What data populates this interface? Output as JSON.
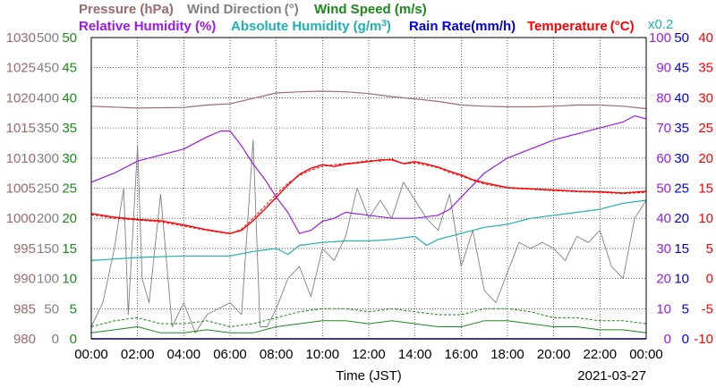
{
  "chart_data": {
    "type": "line",
    "date": "2021-03-27",
    "xlabel": "Time (JST)",
    "x_ticks": [
      "00:00",
      "02:00",
      "04:00",
      "06:00",
      "08:00",
      "10:00",
      "12:00",
      "14:00",
      "16:00",
      "18:00",
      "20:00",
      "22:00",
      "00:00"
    ],
    "x_range_hours": [
      0,
      24
    ],
    "grid": true,
    "legend": [
      {
        "key": "pressure",
        "label": "Pressure (hPa)",
        "color": "#9b6b6b"
      },
      {
        "key": "wind_direction",
        "label": "Wind Direction",
        "unit": "(°)",
        "color": "#808080"
      },
      {
        "key": "wind_speed",
        "label": "Wind Speed (m/s)",
        "color": "#1a8a1a"
      },
      {
        "key": "relative_humidity",
        "label": "Relative Humidity (%)",
        "color": "#9a1aee"
      },
      {
        "key": "absolute_humidity",
        "label": "Absolute Humidity (g/m",
        "sup": "3",
        "tail": ")",
        "color": "#20b0b0"
      },
      {
        "key": "rain_rate",
        "label": "Rain Rate(mm/h)",
        "color": "#0000e0"
      },
      {
        "key": "temperature",
        "label": "Temperature",
        "unit": "(°C)",
        "color": "#ff0000"
      }
    ],
    "abs_humidity_scale_note": "x0.2",
    "axes": {
      "pressure": {
        "min": 980,
        "max": 1030,
        "ticks": [
          "1030",
          "1025",
          "1020",
          "1015",
          "1010",
          "1005",
          "1000",
          "995",
          "990",
          "985",
          "980"
        ]
      },
      "wind_direction": {
        "min": 0,
        "max": 500,
        "ticks": [
          "500",
          "450",
          "400",
          "350",
          "300",
          "250",
          "200",
          "150",
          "100",
          "50",
          "0"
        ]
      },
      "wind_speed": {
        "min": 0,
        "max": 50,
        "ticks": [
          "50",
          "45",
          "40",
          "35",
          "30",
          "25",
          "20",
          "15",
          "10",
          "5",
          "0"
        ]
      },
      "relative_humidity": {
        "min": 0,
        "max": 100,
        "ticks": [
          "100",
          "90",
          "80",
          "70",
          "60",
          "50",
          "40",
          "30",
          "20",
          "10",
          "0"
        ]
      },
      "rain_rate": {
        "min": 0,
        "max": 50,
        "ticks": [
          "50",
          "45",
          "40",
          "35",
          "30",
          "25",
          "20",
          "15",
          "10",
          "5",
          "0"
        ]
      },
      "temperature": {
        "min": -10,
        "max": 40,
        "ticks": [
          "40",
          "35",
          "30",
          "25",
          "20",
          "15",
          "10",
          "5",
          "0",
          "-5",
          "-10"
        ]
      }
    },
    "series": [
      {
        "key": "pressure",
        "axis": "pressure",
        "x": [
          0,
          2,
          4,
          5,
          6,
          7,
          8,
          9,
          10,
          11,
          12,
          13,
          14,
          15,
          16,
          17,
          18,
          19,
          20,
          21,
          22,
          23,
          24
        ],
        "y": [
          1018.6,
          1018.3,
          1018.4,
          1018.8,
          1019.0,
          1019.9,
          1020.8,
          1021.0,
          1021.1,
          1021.0,
          1020.7,
          1020.2,
          1019.8,
          1019.4,
          1018.8,
          1018.6,
          1018.5,
          1018.5,
          1018.6,
          1018.8,
          1018.8,
          1018.6,
          1018.2
        ]
      },
      {
        "key": "wind_direction",
        "axis": "wind_direction",
        "x": [
          0,
          0.5,
          1,
          1.4,
          1.6,
          2,
          2.2,
          2.5,
          3,
          3.5,
          4,
          4.5,
          5,
          5.5,
          6,
          6.5,
          7,
          7.3,
          7.6,
          8,
          8.5,
          9,
          9.5,
          10,
          10.5,
          11,
          11.5,
          12,
          12.5,
          13,
          13.5,
          14,
          14.5,
          15,
          15.5,
          16,
          16.5,
          17,
          17.5,
          18,
          18.5,
          19,
          19.5,
          20,
          20.5,
          21,
          21.5,
          22,
          22.5,
          23,
          23.5,
          24
        ],
        "y": [
          20,
          60,
          150,
          250,
          40,
          320,
          100,
          60,
          240,
          20,
          60,
          10,
          40,
          50,
          60,
          40,
          330,
          20,
          20,
          50,
          100,
          120,
          70,
          150,
          130,
          170,
          250,
          200,
          230,
          200,
          260,
          230,
          200,
          180,
          240,
          120,
          180,
          80,
          60,
          110,
          160,
          150,
          160,
          150,
          130,
          170,
          160,
          180,
          120,
          100,
          200,
          230
        ]
      },
      {
        "key": "wind_speed",
        "axis": "wind_speed",
        "x": [
          0,
          1,
          2,
          3,
          4,
          5,
          6,
          7,
          8,
          9,
          10,
          11,
          12,
          13,
          14,
          15,
          16,
          17,
          18,
          19,
          20,
          21,
          22,
          23,
          24
        ],
        "y": [
          1,
          1.5,
          2,
          1,
          1,
          1.5,
          1,
          1,
          2,
          2.5,
          3,
          3,
          2.5,
          3,
          2.5,
          2,
          2,
          3,
          3,
          2.5,
          2,
          2,
          1.5,
          1.5,
          1
        ]
      },
      {
        "key": "wind_speed_gust",
        "axis": "wind_speed",
        "x": [
          0,
          1,
          2,
          3,
          4,
          5,
          6,
          7,
          8,
          9,
          10,
          11,
          12,
          13,
          14,
          15,
          16,
          17,
          18,
          19,
          20,
          21,
          22,
          23,
          24
        ],
        "y": [
          2,
          3,
          3.5,
          2.5,
          2.5,
          3,
          2,
          2.5,
          3.5,
          4.5,
          5,
          5,
          4.5,
          5,
          4.5,
          4,
          4,
          5,
          5,
          4.5,
          3.5,
          3.5,
          3,
          3,
          2.5
        ]
      },
      {
        "key": "relative_humidity",
        "axis": "relative_humidity",
        "x": [
          0,
          1,
          2,
          3,
          4,
          5,
          5.6,
          6,
          6.5,
          7,
          7.5,
          8,
          8.5,
          9,
          9.5,
          10,
          10.5,
          11,
          12,
          13,
          14,
          15,
          15.5,
          16,
          16.5,
          17,
          18,
          19,
          20,
          21,
          22,
          23,
          23.5,
          24
        ],
        "y": [
          52,
          55,
          59,
          61,
          63,
          67,
          69,
          69,
          64,
          58,
          53,
          47,
          42,
          35,
          36,
          39,
          40,
          42,
          41,
          40,
          40,
          41,
          43,
          47,
          51,
          55,
          60,
          63,
          66,
          68,
          70,
          72,
          74,
          73
        ]
      },
      {
        "key": "absolute_humidity",
        "axis": "relative_humidity",
        "x": [
          0,
          2,
          4,
          6,
          7,
          8,
          8.5,
          9,
          10,
          11,
          12,
          13,
          14,
          14.5,
          15,
          16,
          17,
          18,
          19,
          20,
          21,
          22,
          23,
          24
        ],
        "y": [
          26,
          27,
          27.5,
          27.5,
          29,
          30,
          28,
          31,
          32,
          32.5,
          32.5,
          33,
          34,
          31,
          33,
          35,
          37,
          38,
          40,
          41,
          42,
          43,
          45,
          46
        ]
      },
      {
        "key": "rain_rate",
        "axis": "rain_rate",
        "x": [
          0,
          24
        ],
        "y": [
          0,
          0
        ]
      },
      {
        "key": "temperature",
        "axis": "temperature",
        "x": [
          0,
          1,
          2,
          3,
          4,
          5,
          6,
          6.5,
          7,
          7.5,
          8,
          8.5,
          9,
          9.5,
          10,
          10.5,
          11,
          11.5,
          12,
          12.5,
          13,
          13.5,
          14,
          14.5,
          15,
          15.5,
          16,
          16.5,
          17,
          18,
          19,
          20,
          21,
          22,
          23,
          24
        ],
        "y": [
          10.8,
          10.2,
          9.8,
          9.6,
          8.9,
          8.1,
          7.5,
          8.0,
          9.6,
          11.5,
          13.5,
          15.5,
          17.3,
          18.3,
          18.9,
          18.6,
          19.0,
          19.2,
          19.4,
          19.7,
          19.7,
          19.1,
          19.4,
          19.0,
          18.5,
          17.8,
          17.2,
          16.4,
          15.9,
          15.1,
          14.9,
          14.7,
          14.5,
          14.4,
          14.2,
          14.5
        ]
      },
      {
        "key": "temperature_dew",
        "axis": "temperature",
        "x": [
          0,
          1,
          2,
          3,
          4,
          5,
          6,
          6.5,
          7,
          7.5,
          8,
          8.5,
          9,
          9.5,
          10,
          10.5,
          11,
          11.5,
          12,
          12.5,
          13,
          13.5,
          14,
          14.5,
          15,
          15.5,
          16,
          16.5,
          17,
          18,
          19,
          20,
          21,
          22,
          23,
          24
        ],
        "y": [
          10.6,
          10.0,
          9.7,
          9.4,
          8.7,
          8.0,
          7.4,
          8.2,
          10.0,
          12.0,
          14.0,
          15.8,
          17.1,
          18.0,
          18.6,
          18.9,
          19.1,
          19.3,
          19.6,
          19.5,
          19.9,
          19.0,
          19.2,
          18.8,
          18.4,
          17.6,
          17.0,
          16.3,
          15.7,
          15.0,
          14.8,
          14.6,
          14.4,
          14.3,
          14.1,
          14.3
        ]
      }
    ]
  }
}
